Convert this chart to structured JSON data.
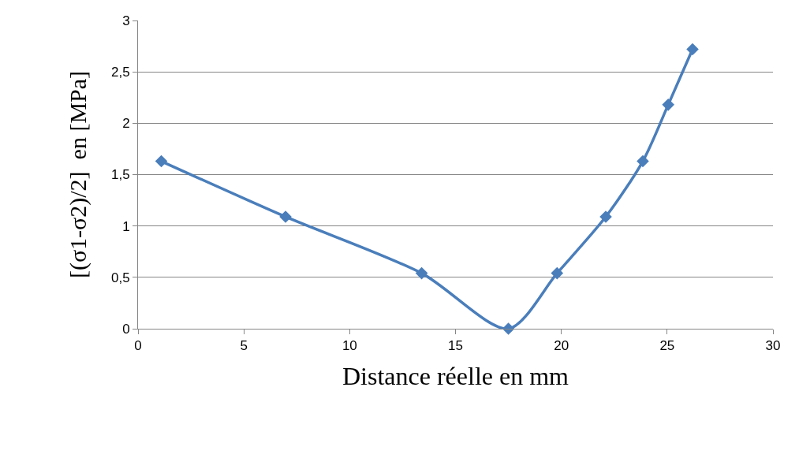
{
  "chart_data": {
    "type": "line",
    "xlabel": "Distance réelle en mm",
    "ylabel": "[(σ1-σ2)/2]  en [MPa]",
    "x": [
      1.1,
      6.97,
      13.4,
      17.5,
      19.8,
      22.1,
      23.85,
      25.05,
      26.2
    ],
    "series": [
      {
        "color": "#4a7ebb",
        "values": [
          1.63,
          1.09,
          0.54,
          0,
          0.54,
          1.09,
          1.63,
          2.18,
          2.72
        ]
      }
    ],
    "xlim": [
      0,
      30
    ],
    "xticks": [
      0,
      5,
      10,
      15,
      20,
      25,
      30
    ],
    "ylim": [
      0,
      3
    ],
    "yticks": [
      0,
      {
        "value": 0.5,
        "label": "0,5"
      },
      1,
      {
        "value": 1.5,
        "label": "1,5"
      },
      2,
      {
        "value": 2.5,
        "label": "2,5"
      },
      3
    ],
    "grid": "y",
    "marker": "diamond",
    "line_style": "solid"
  }
}
